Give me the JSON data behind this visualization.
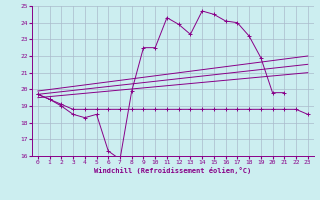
{
  "xlabel": "Windchill (Refroidissement éolien,°C)",
  "xlim": [
    -0.5,
    23.5
  ],
  "ylim": [
    16,
    25
  ],
  "yticks": [
    16,
    17,
    18,
    19,
    20,
    21,
    22,
    23,
    24,
    25
  ],
  "xticks": [
    0,
    1,
    2,
    3,
    4,
    5,
    6,
    7,
    8,
    9,
    10,
    11,
    12,
    13,
    14,
    15,
    16,
    17,
    18,
    19,
    20,
    21,
    22,
    23
  ],
  "bg_color": "#cceef0",
  "line_color": "#880088",
  "grid_color": "#aabbcc",
  "series1_x": [
    0,
    1,
    2,
    3,
    4,
    5,
    6,
    7,
    8,
    9,
    10,
    11,
    12,
    13,
    14,
    15,
    16,
    17,
    18,
    19,
    20,
    21
  ],
  "series1_y": [
    19.7,
    19.4,
    19.0,
    18.5,
    18.3,
    18.5,
    16.3,
    15.8,
    19.9,
    22.5,
    22.5,
    24.3,
    23.9,
    23.3,
    24.7,
    24.5,
    24.1,
    24.0,
    23.2,
    21.9,
    19.8,
    19.8
  ],
  "series2_x": [
    0,
    1,
    2,
    3,
    4,
    5,
    6,
    7,
    8,
    9,
    10,
    11,
    12,
    13,
    14,
    15,
    16,
    17,
    18,
    19,
    20,
    21,
    22,
    23
  ],
  "series2_y": [
    19.7,
    19.4,
    19.1,
    18.8,
    18.8,
    18.8,
    18.8,
    18.8,
    18.8,
    18.8,
    18.8,
    18.8,
    18.8,
    18.8,
    18.8,
    18.8,
    18.8,
    18.8,
    18.8,
    18.8,
    18.8,
    18.8,
    18.8,
    18.5
  ],
  "line1_x": [
    0,
    23
  ],
  "line1_y": [
    19.7,
    21.5
  ],
  "line2_x": [
    0,
    23
  ],
  "line2_y": [
    19.9,
    22.0
  ],
  "line3_x": [
    0,
    23
  ],
  "line3_y": [
    19.5,
    21.0
  ],
  "figsize": [
    3.2,
    2.0
  ],
  "dpi": 100
}
